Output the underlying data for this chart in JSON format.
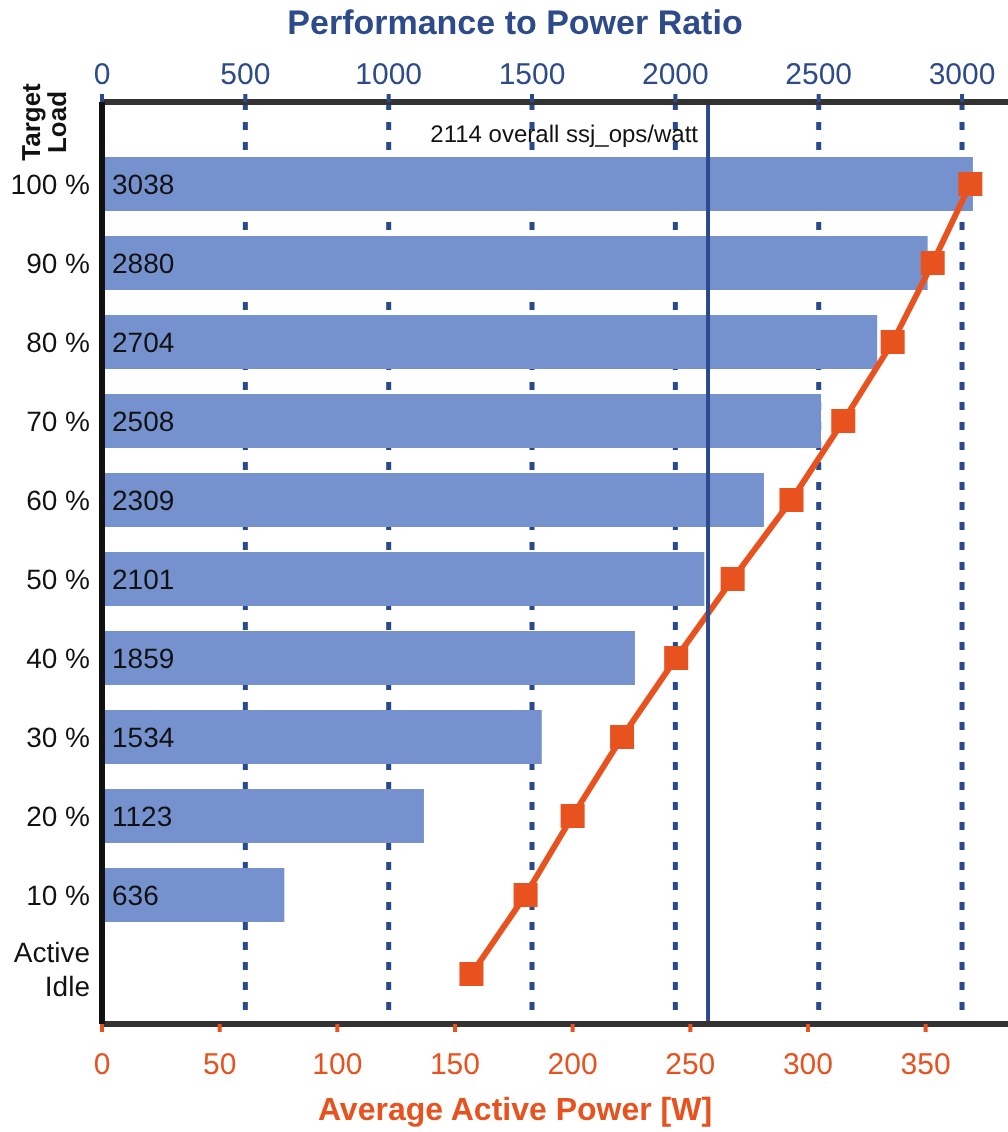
{
  "chart_data": {
    "type": "bar",
    "orientation": "horizontal",
    "xlabel": "Performance to Power Ratio",
    "x2label": "Average Active Power [W]",
    "ylabel": "Target Load",
    "categories": [
      "100 %",
      "90 %",
      "80 %",
      "70 %",
      "60 %",
      "50 %",
      "40 %",
      "30 %",
      "20 %",
      "10 %",
      "Active Idle"
    ],
    "series": [
      {
        "color": "#7592cf",
        "values": [
          3038,
          2880,
          2704,
          2508,
          2309,
          2101,
          1859,
          1534,
          1123,
          636,
          null
        ],
        "value_labels": [
          "3038",
          "2880",
          "2704",
          "2508",
          "2309",
          "2101",
          "1859",
          "1534",
          "1123",
          "636",
          null
        ]
      },
      {
        "type": "line",
        "axis": "x2",
        "color": "#e8521f",
        "values": [
          369,
          353,
          336,
          315,
          293,
          268,
          244,
          221,
          200,
          180,
          157
        ]
      }
    ],
    "marker": "square",
    "xlim": [
      0,
      3160
    ],
    "xticks": [
      0,
      500,
      1000,
      1500,
      2000,
      2500,
      3000
    ],
    "x2lim": [
      0,
      385
    ],
    "x2ticks": [
      0,
      50,
      100,
      150,
      200,
      250,
      300,
      350
    ],
    "grid": "x",
    "ref_lines": [
      {
        "axis": "x",
        "value": 2114,
        "label": "2114 overall ssj_ops/watt",
        "color": "#2b4a8c"
      }
    ]
  }
}
